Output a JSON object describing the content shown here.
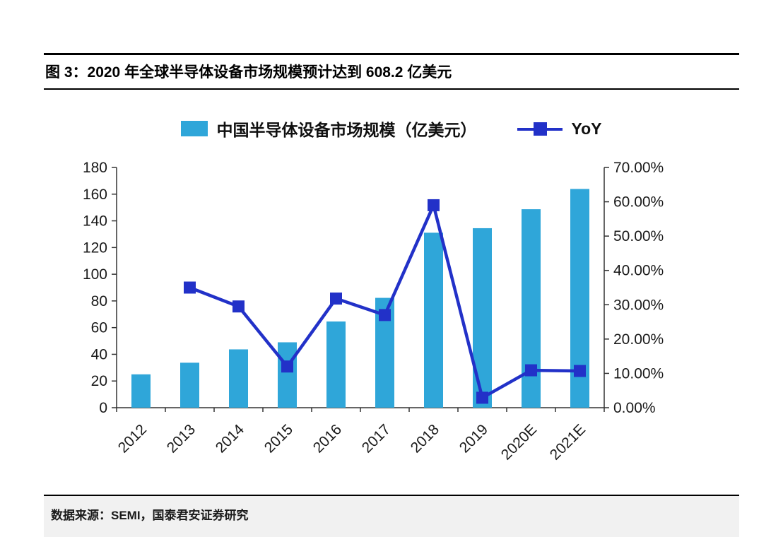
{
  "figure": {
    "title": "图 3：2020 年全球半导体设备市场规模预计达到 608.2 亿美元",
    "source": "数据来源：SEMI，国泰君安证券研究"
  },
  "legend": {
    "bars": "中国半导体设备市场规模（亿美元）",
    "line": "YoY"
  },
  "colors": {
    "bar": "#2fa6d9",
    "line": "#2231c8",
    "axis": "#333333",
    "tick_text": "#1a1a1a"
  },
  "chart_data": {
    "type": "bar",
    "subtype": "combo bar+line, dual axis",
    "categories": [
      "2012",
      "2013",
      "2014",
      "2015",
      "2016",
      "2017",
      "2018",
      "2019",
      "2020E",
      "2021E"
    ],
    "series": [
      {
        "name": "中国半导体设备市场规模（亿美元）",
        "type": "bar",
        "axis": "left",
        "values": [
          25,
          33.7,
          43.7,
          49,
          64.6,
          82.3,
          131.1,
          134.5,
          148.7,
          163.9
        ]
      },
      {
        "name": "YoY",
        "type": "line",
        "axis": "right",
        "values": [
          null,
          35,
          29.5,
          12,
          31.8,
          27,
          59,
          2.9,
          10.9,
          10.7
        ]
      }
    ],
    "left_axis": {
      "min": 0,
      "max": 180,
      "step": 20,
      "ticks": [
        "0",
        "20",
        "40",
        "60",
        "80",
        "100",
        "120",
        "140",
        "160",
        "180"
      ]
    },
    "right_axis": {
      "min": 0,
      "max": 70,
      "step": 10,
      "ticks": [
        "0.00%",
        "10.00%",
        "20.00%",
        "30.00%",
        "40.00%",
        "50.00%",
        "60.00%",
        "70.00%"
      ]
    },
    "grid": false,
    "legend_position": "top",
    "title": "图 3：2020 年全球半导体设备市场规模预计达到 608.2 亿美元"
  }
}
